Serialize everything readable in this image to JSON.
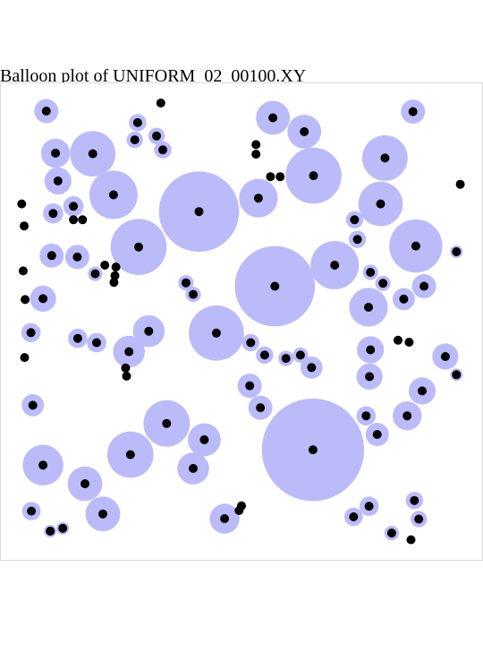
{
  "title": "Balloon plot of UNIFORM_02_00100.XY",
  "chart_data": {
    "type": "scatter",
    "title": "Balloon plot of UNIFORM_02_00100.XY",
    "xlim": [
      0,
      1
    ],
    "ylim": [
      0,
      1
    ],
    "grid": false,
    "colors": {
      "balloon": "#bbbbf9",
      "point": "#000000",
      "frame": "#d9d9d9"
    },
    "points": [
      {
        "x": 0.096,
        "y": 0.94,
        "r": 0.025
      },
      {
        "x": 0.285,
        "y": 0.916,
        "r": 0.018
      },
      {
        "x": 0.333,
        "y": 0.957,
        "r": 0
      },
      {
        "x": 0.565,
        "y": 0.926,
        "r": 0.035
      },
      {
        "x": 0.855,
        "y": 0.939,
        "r": 0.025
      },
      {
        "x": 0.324,
        "y": 0.888,
        "r": 0.017
      },
      {
        "x": 0.279,
        "y": 0.88,
        "r": 0.017
      },
      {
        "x": 0.63,
        "y": 0.897,
        "r": 0.035
      },
      {
        "x": 0.115,
        "y": 0.852,
        "r": 0.03
      },
      {
        "x": 0.192,
        "y": 0.851,
        "r": 0.047
      },
      {
        "x": 0.337,
        "y": 0.859,
        "r": 0.018
      },
      {
        "x": 0.53,
        "y": 0.87,
        "r": 0
      },
      {
        "x": 0.53,
        "y": 0.85,
        "r": 0
      },
      {
        "x": 0.797,
        "y": 0.842,
        "r": 0.047
      },
      {
        "x": 0.12,
        "y": 0.794,
        "r": 0.028
      },
      {
        "x": 0.56,
        "y": 0.803,
        "r": 0
      },
      {
        "x": 0.58,
        "y": 0.803,
        "r": 0
      },
      {
        "x": 0.649,
        "y": 0.805,
        "r": 0.058
      },
      {
        "x": 0.953,
        "y": 0.787,
        "r": 0
      },
      {
        "x": 0.235,
        "y": 0.765,
        "r": 0.05
      },
      {
        "x": 0.535,
        "y": 0.758,
        "r": 0.04
      },
      {
        "x": 0.788,
        "y": 0.746,
        "r": 0.046
      },
      {
        "x": 0.045,
        "y": 0.746,
        "r": 0
      },
      {
        "x": 0.152,
        "y": 0.741,
        "r": 0.021
      },
      {
        "x": 0.412,
        "y": 0.73,
        "r": 0.083
      },
      {
        "x": 0.11,
        "y": 0.726,
        "r": 0.021
      },
      {
        "x": 0.152,
        "y": 0.713,
        "r": 0
      },
      {
        "x": 0.171,
        "y": 0.713,
        "r": 0
      },
      {
        "x": 0.734,
        "y": 0.713,
        "r": 0.018
      },
      {
        "x": 0.05,
        "y": 0.7,
        "r": 0
      },
      {
        "x": 0.74,
        "y": 0.672,
        "r": 0.018
      },
      {
        "x": 0.287,
        "y": 0.656,
        "r": 0.058
      },
      {
        "x": 0.861,
        "y": 0.658,
        "r": 0.055
      },
      {
        "x": 0.945,
        "y": 0.646,
        "r": 0.013
      },
      {
        "x": 0.107,
        "y": 0.638,
        "r": 0.025
      },
      {
        "x": 0.16,
        "y": 0.635,
        "r": 0.025
      },
      {
        "x": 0.693,
        "y": 0.618,
        "r": 0.05
      },
      {
        "x": 0.217,
        "y": 0.618,
        "r": 0
      },
      {
        "x": 0.24,
        "y": 0.614,
        "r": 0
      },
      {
        "x": 0.197,
        "y": 0.6,
        "r": 0.015
      },
      {
        "x": 0.238,
        "y": 0.596,
        "r": 0
      },
      {
        "x": 0.048,
        "y": 0.606,
        "r": 0
      },
      {
        "x": 0.767,
        "y": 0.603,
        "r": 0.016
      },
      {
        "x": 0.236,
        "y": 0.582,
        "r": 0
      },
      {
        "x": 0.385,
        "y": 0.581,
        "r": 0.016
      },
      {
        "x": 0.569,
        "y": 0.574,
        "r": 0.083
      },
      {
        "x": 0.793,
        "y": 0.58,
        "r": 0.016
      },
      {
        "x": 0.878,
        "y": 0.574,
        "r": 0.025
      },
      {
        "x": 0.4,
        "y": 0.557,
        "r": 0.016
      },
      {
        "x": 0.089,
        "y": 0.548,
        "r": 0.027
      },
      {
        "x": 0.836,
        "y": 0.547,
        "r": 0.023
      },
      {
        "x": 0.052,
        "y": 0.546,
        "r": 0
      },
      {
        "x": 0.763,
        "y": 0.53,
        "r": 0.04
      },
      {
        "x": 0.064,
        "y": 0.477,
        "r": 0.02
      },
      {
        "x": 0.308,
        "y": 0.48,
        "r": 0.033
      },
      {
        "x": 0.448,
        "y": 0.476,
        "r": 0.057
      },
      {
        "x": 0.161,
        "y": 0.465,
        "r": 0.02
      },
      {
        "x": 0.2,
        "y": 0.456,
        "r": 0.02
      },
      {
        "x": 0.824,
        "y": 0.461,
        "r": 0
      },
      {
        "x": 0.847,
        "y": 0.457,
        "r": 0
      },
      {
        "x": 0.267,
        "y": 0.437,
        "r": 0.033
      },
      {
        "x": 0.519,
        "y": 0.456,
        "r": 0.018
      },
      {
        "x": 0.767,
        "y": 0.441,
        "r": 0.028
      },
      {
        "x": 0.548,
        "y": 0.43,
        "r": 0.018
      },
      {
        "x": 0.592,
        "y": 0.423,
        "r": 0.016
      },
      {
        "x": 0.622,
        "y": 0.43,
        "r": 0.016
      },
      {
        "x": 0.051,
        "y": 0.425,
        "r": 0
      },
      {
        "x": 0.922,
        "y": 0.427,
        "r": 0.027
      },
      {
        "x": 0.645,
        "y": 0.404,
        "r": 0.023
      },
      {
        "x": 0.26,
        "y": 0.403,
        "r": 0
      },
      {
        "x": 0.262,
        "y": 0.386,
        "r": 0
      },
      {
        "x": 0.945,
        "y": 0.389,
        "r": 0.013
      },
      {
        "x": 0.765,
        "y": 0.385,
        "r": 0.027
      },
      {
        "x": 0.517,
        "y": 0.366,
        "r": 0.025
      },
      {
        "x": 0.874,
        "y": 0.355,
        "r": 0.028
      },
      {
        "x": 0.068,
        "y": 0.325,
        "r": 0.023
      },
      {
        "x": 0.539,
        "y": 0.32,
        "r": 0.025
      },
      {
        "x": 0.758,
        "y": 0.303,
        "r": 0.02
      },
      {
        "x": 0.843,
        "y": 0.303,
        "r": 0.03
      },
      {
        "x": 0.345,
        "y": 0.287,
        "r": 0.048
      },
      {
        "x": 0.423,
        "y": 0.253,
        "r": 0.034
      },
      {
        "x": 0.781,
        "y": 0.264,
        "r": 0.024
      },
      {
        "x": 0.648,
        "y": 0.232,
        "r": 0.106
      },
      {
        "x": 0.27,
        "y": 0.222,
        "r": 0.048
      },
      {
        "x": 0.089,
        "y": 0.2,
        "r": 0.042
      },
      {
        "x": 0.4,
        "y": 0.193,
        "r": 0.033
      },
      {
        "x": 0.176,
        "y": 0.161,
        "r": 0.036
      },
      {
        "x": 0.858,
        "y": 0.126,
        "r": 0.018
      },
      {
        "x": 0.5,
        "y": 0.115,
        "r": 0
      },
      {
        "x": 0.495,
        "y": 0.105,
        "r": 0
      },
      {
        "x": 0.764,
        "y": 0.114,
        "r": 0.02
      },
      {
        "x": 0.065,
        "y": 0.104,
        "r": 0.019
      },
      {
        "x": 0.213,
        "y": 0.098,
        "r": 0.036
      },
      {
        "x": 0.465,
        "y": 0.088,
        "r": 0.031
      },
      {
        "x": 0.732,
        "y": 0.092,
        "r": 0.019
      },
      {
        "x": 0.867,
        "y": 0.087,
        "r": 0.017
      },
      {
        "x": 0.13,
        "y": 0.068,
        "r": 0.013
      },
      {
        "x": 0.104,
        "y": 0.062,
        "r": 0.013
      },
      {
        "x": 0.811,
        "y": 0.058,
        "r": 0.015
      },
      {
        "x": 0.851,
        "y": 0.044,
        "r": 0
      }
    ]
  }
}
